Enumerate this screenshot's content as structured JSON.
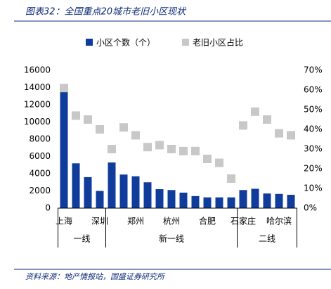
{
  "chart_data": {
    "type": "bar_scatter",
    "title": "图表32：全国重点20城市老旧小区现状",
    "source": "资料来源：地产情报站，国盛证券研究所",
    "categories": [
      "上海",
      null,
      null,
      "深圳",
      null,
      null,
      "郑州",
      null,
      null,
      "杭州",
      null,
      null,
      "合肥",
      null,
      null,
      "石家庄",
      null,
      null,
      "哈尔滨",
      null
    ],
    "groups": [
      {
        "label": "一线",
        "start": 0,
        "end": 3
      },
      {
        "label": "新一线",
        "start": 4,
        "end": 14
      },
      {
        "label": "二线",
        "start": 15,
        "end": 19
      }
    ],
    "series": [
      {
        "name": "小区个数（个）",
        "color": "#103c9c",
        "kind": "bar",
        "values": [
          13500,
          5200,
          3600,
          2000,
          5300,
          3900,
          3700,
          3000,
          2200,
          2100,
          1800,
          1400,
          1250,
          1250,
          1250,
          2100,
          2250,
          1700,
          1650,
          1550
        ]
      },
      {
        "name": "老旧小区占比",
        "color": "#c8c8c8",
        "kind": "marker",
        "axis": "y2",
        "values": [
          61,
          47,
          45,
          40,
          30,
          41,
          37,
          31,
          32,
          30,
          29,
          29,
          25,
          23,
          15,
          42,
          49,
          45,
          38,
          37
        ]
      }
    ],
    "ylim": [
      0,
      16000
    ],
    "yticks": [
      0,
      2000,
      4000,
      6000,
      8000,
      10000,
      12000,
      14000,
      16000
    ],
    "y2lim": [
      0,
      70
    ],
    "y2ticks": [
      {
        "value": 0,
        "label": "0%"
      },
      {
        "value": 10,
        "label": "10%"
      },
      {
        "value": 20,
        "label": "20%"
      },
      {
        "value": 30,
        "label": "30%"
      },
      {
        "value": 40,
        "label": "40%"
      },
      {
        "value": 50,
        "label": "50%"
      },
      {
        "value": 60,
        "label": "60%"
      },
      {
        "value": 70,
        "label": "70%"
      }
    ],
    "legend": "top"
  }
}
